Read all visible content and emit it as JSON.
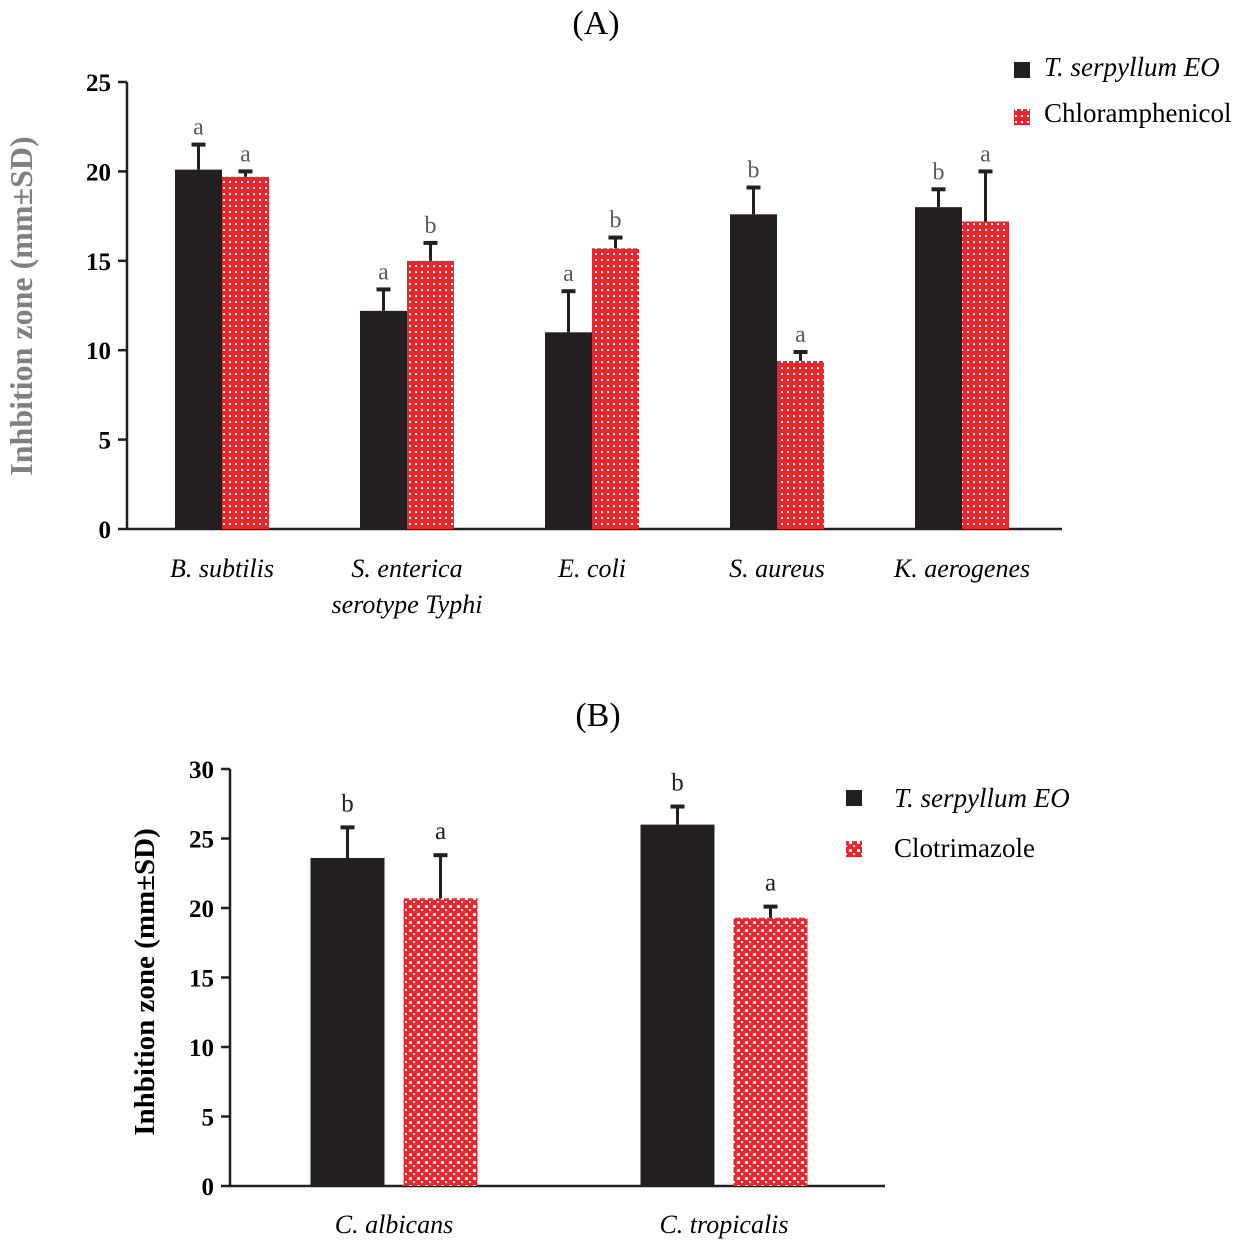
{
  "colors": {
    "series1": "#231f20",
    "series2": "#e8262c",
    "dot": "#ffffff",
    "axis": "#231f20",
    "ylabelA": "#808080",
    "sigLabel": "#595959"
  },
  "chart_data": [
    {
      "type": "bar",
      "title": "(A)",
      "ylabel": "Inhbition zone (mm±SD)",
      "xlabel": "",
      "ylim": [
        0,
        25
      ],
      "yticks": [
        "0",
        "5",
        "10",
        "15",
        "20",
        "25"
      ],
      "grid": false,
      "legend_position": "top-right",
      "categories": [
        [
          "B. subtilis"
        ],
        [
          "S. enterica",
          "serotype Typhi"
        ],
        [
          "E. coli"
        ],
        [
          "S. aureus"
        ],
        [
          "K. aerogenes"
        ]
      ],
      "series": [
        {
          "name": "T. serpyllum EO",
          "values": [
            20.1,
            12.2,
            11.0,
            17.6,
            18.0
          ],
          "errors": [
            1.4,
            1.2,
            2.3,
            1.5,
            1.0
          ],
          "labels": [
            "a",
            "a",
            "a",
            "b",
            "b"
          ]
        },
        {
          "name": "Chloramphenicol",
          "values": [
            19.7,
            15.0,
            15.7,
            9.4,
            17.2
          ],
          "errors": [
            0.3,
            1.0,
            0.6,
            0.5,
            2.8
          ],
          "labels": [
            "a",
            "b",
            "b",
            "a",
            "a"
          ]
        }
      ]
    },
    {
      "type": "bar",
      "title": "(B)",
      "ylabel": "Inhbition zone (mm±SD)",
      "xlabel": "",
      "ylim": [
        0,
        30
      ],
      "yticks": [
        "0",
        "5",
        "10",
        "15",
        "20",
        "25",
        "30"
      ],
      "grid": false,
      "legend_position": "right",
      "categories": [
        [
          "C. albicans"
        ],
        [
          "C. tropicalis"
        ]
      ],
      "series": [
        {
          "name": "T. serpyllum EO",
          "values": [
            23.6,
            26.0
          ],
          "errors": [
            2.2,
            1.3
          ],
          "labels": [
            "b",
            "b"
          ]
        },
        {
          "name": "Clotrimazole",
          "values": [
            20.7,
            19.3
          ],
          "errors": [
            3.1,
            0.8
          ],
          "labels": [
            "a",
            "a"
          ]
        }
      ]
    }
  ]
}
